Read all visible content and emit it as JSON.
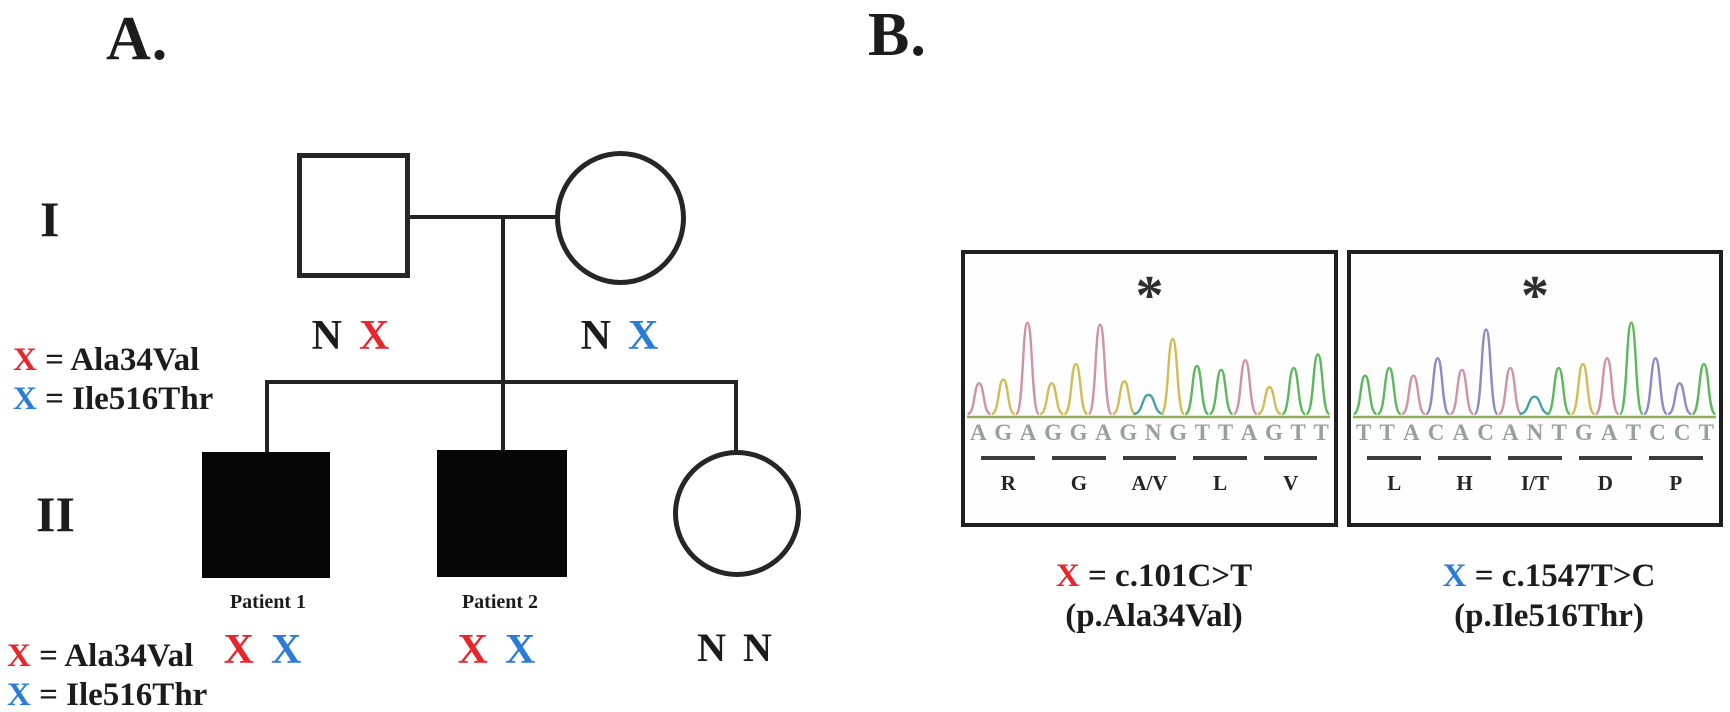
{
  "panel_a": {
    "label": "A.",
    "generation_labels": [
      "I",
      "II"
    ],
    "legend": {
      "red_symbol": "X",
      "red_text": "= Ala34Val",
      "blue_symbol": "X",
      "blue_text": "= Ile516Thr"
    },
    "individuals": {
      "father": {
        "alleles": [
          "N",
          "X"
        ]
      },
      "mother": {
        "alleles": [
          "N",
          "X"
        ]
      },
      "patient1": {
        "label": "Patient 1",
        "alleles": [
          "X",
          "X"
        ]
      },
      "patient2": {
        "label": "Patient 2",
        "alleles": [
          "X",
          "X"
        ]
      },
      "sister": {
        "alleles": [
          "N",
          "N"
        ]
      }
    }
  },
  "panel_b": {
    "label": "B.",
    "chromatograms": [
      {
        "asterisk": "*",
        "sequence": "AGAGGAGNGTTAGTT",
        "amino_acids": [
          "R",
          "G",
          "A/V",
          "L",
          "V"
        ],
        "peaks": [
          {
            "base": "A",
            "h": 0.32
          },
          {
            "base": "G",
            "h": 0.36
          },
          {
            "base": "A",
            "h": 0.95
          },
          {
            "base": "G",
            "h": 0.32
          },
          {
            "base": "G",
            "h": 0.52
          },
          {
            "base": "A",
            "h": 0.93
          },
          {
            "base": "G",
            "h": 0.34
          },
          {
            "base": "N",
            "h": 0.2
          },
          {
            "base": "G",
            "h": 0.78
          },
          {
            "base": "T",
            "h": 0.5
          },
          {
            "base": "T",
            "h": 0.46
          },
          {
            "base": "A",
            "h": 0.56
          },
          {
            "base": "G",
            "h": 0.28
          },
          {
            "base": "T",
            "h": 0.48
          },
          {
            "base": "T",
            "h": 0.62
          }
        ]
      },
      {
        "asterisk": "*",
        "sequence": "TTACACANTGATCCT",
        "amino_acids": [
          "L",
          "H",
          "I/T",
          "D",
          "P"
        ],
        "peaks": [
          {
            "base": "T",
            "h": 0.4
          },
          {
            "base": "T",
            "h": 0.48
          },
          {
            "base": "A",
            "h": 0.4
          },
          {
            "base": "C",
            "h": 0.58
          },
          {
            "base": "A",
            "h": 0.46
          },
          {
            "base": "C",
            "h": 0.88
          },
          {
            "base": "A",
            "h": 0.48
          },
          {
            "base": "N",
            "h": 0.18
          },
          {
            "base": "T",
            "h": 0.48
          },
          {
            "base": "G",
            "h": 0.52
          },
          {
            "base": "A",
            "h": 0.58
          },
          {
            "base": "T",
            "h": 0.95
          },
          {
            "base": "C",
            "h": 0.58
          },
          {
            "base": "C",
            "h": 0.32
          },
          {
            "base": "T",
            "h": 0.52
          }
        ]
      }
    ],
    "captions": [
      {
        "symbol": "X",
        "mutation": "= c.101C>T",
        "protein": "(p.Ala34Val)"
      },
      {
        "symbol": "X",
        "mutation": "= c.1547T>C",
        "protein": "(p.Ile516Thr)"
      }
    ]
  },
  "colors": {
    "red": "#e8252b",
    "blue": "#2b7cd8",
    "sequence_gray": "#98a09e",
    "trace": {
      "A": "#cf93a5",
      "G": "#d2bc55",
      "T": "#5cb85c",
      "C": "#8f8ac4",
      "N": "#47a0a8"
    },
    "baseline": "#8fae5e"
  }
}
